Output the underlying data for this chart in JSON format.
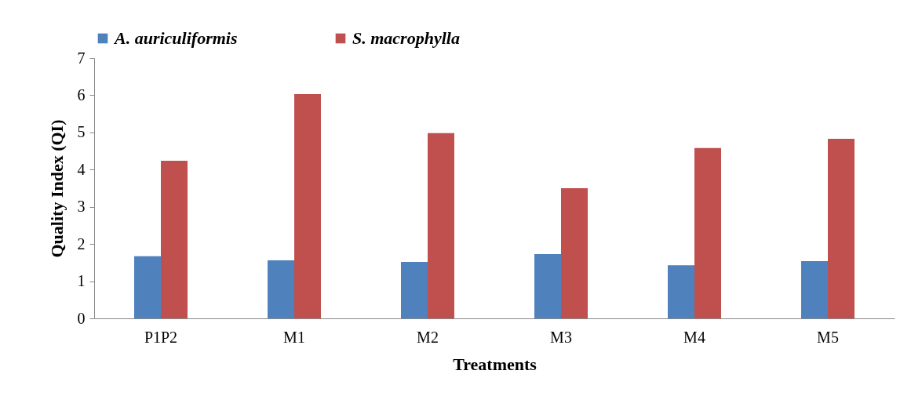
{
  "chart_data": {
    "type": "bar",
    "xlabel": "Treatments",
    "ylabel": "Quality Index (QI)",
    "categories": [
      "P1P2",
      "M1",
      "M2",
      "M3",
      "M4",
      "M5"
    ],
    "series": [
      {
        "name": "A. auriculiformis",
        "color": "#4f81bd",
        "values": [
          1.67,
          1.56,
          1.52,
          1.73,
          1.43,
          1.54
        ]
      },
      {
        "name": "S. macrophylla",
        "color": "#c0504d",
        "values": [
          4.24,
          6.03,
          4.98,
          3.5,
          4.58,
          4.83
        ]
      }
    ],
    "ylim": [
      0,
      7
    ],
    "yticks": [
      0,
      1,
      2,
      3,
      4,
      5,
      6,
      7
    ],
    "legend": "top"
  }
}
